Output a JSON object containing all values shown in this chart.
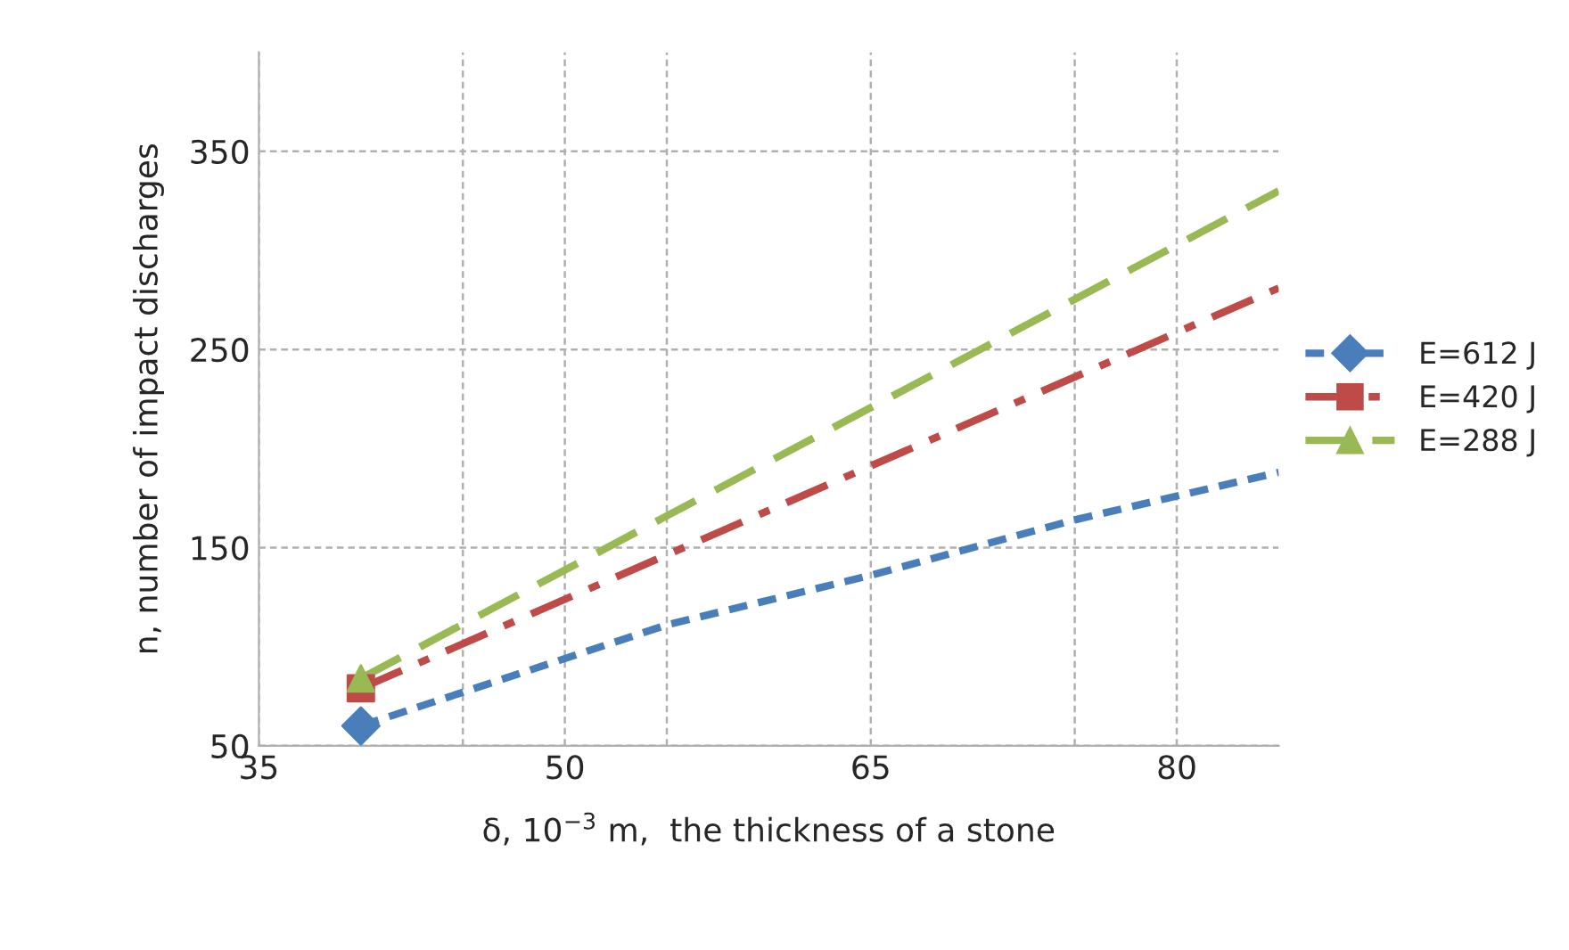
{
  "chart_data": {
    "type": "line",
    "xlabel": "δ, 10$^{−3}$ m,  the thickness of a stone",
    "ylabel": "n, number of impact discharges",
    "xlim": [
      35,
      85
    ],
    "ylim": [
      50,
      400
    ],
    "xticks": [
      35,
      {
        "value": 45,
        "label": null
      },
      50,
      {
        "value": 55,
        "label": null
      },
      65,
      {
        "value": 75,
        "label": null
      },
      80
    ],
    "yticks": [
      50,
      150,
      250,
      350
    ],
    "grid": true,
    "legend": "right",
    "series": [
      {
        "color": "#4a7ebb",
        "line_style": "dotted",
        "x": [
          40,
          55,
          65,
          75,
          85
        ],
        "values": [
          60,
          111,
          136,
          164,
          188
        ]
      },
      {
        "color": "#be4b48",
        "line_style": "dashdot",
        "x": [
          40,
          85
        ],
        "values": [
          79,
          281
        ]
      },
      {
        "color": "#98b954",
        "line_style": "dashed",
        "x": [
          40,
          85
        ],
        "values": [
          84,
          330
        ]
      },
      {
        "type": "scatter",
        "name": "E=612 J",
        "color": "#4a7ebb",
        "marker": "diamond",
        "x": [
          40
        ],
        "values": [
          60
        ]
      },
      {
        "type": "scatter",
        "name": "E=420 J",
        "color": "#be4b48",
        "marker": "square",
        "x": [
          40
        ],
        "values": [
          79
        ]
      },
      {
        "type": "scatter",
        "name": "E=288 J",
        "color": "#98b954",
        "marker": "triangle",
        "x": [
          40
        ],
        "values": [
          84
        ]
      }
    ]
  }
}
